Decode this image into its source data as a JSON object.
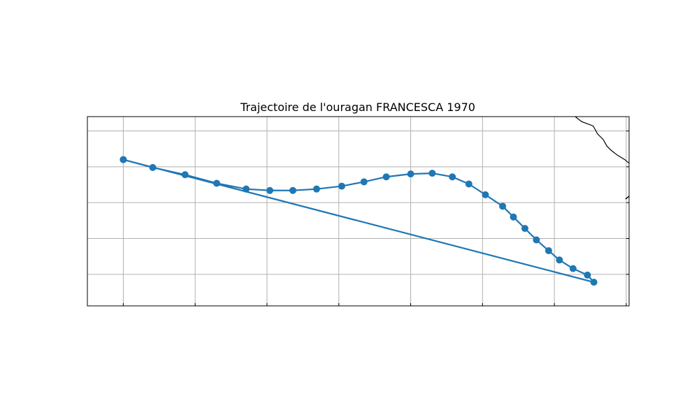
{
  "chart_data": {
    "type": "line",
    "title": "Trajectoire de l'ouragan FRANCESCA 1970",
    "xlabel": "",
    "ylabel": "",
    "grid": true,
    "projection": "map",
    "xlim": [
      -145,
      -107.3
    ],
    "ylim": [
      5.3,
      18.5
    ],
    "gridlines_x": [
      -142.5,
      -137.5,
      -132.5,
      -127.5,
      -122.5,
      -117.5,
      -112.5,
      -107.5
    ],
    "gridlines_y": [
      7.5,
      10,
      12.5,
      15,
      17.5
    ],
    "series": [
      {
        "color": "#1f77b4",
        "marker": "circle",
        "points": [
          [
            -142.5,
            15.5
          ],
          [
            -140.45,
            14.95
          ],
          [
            -138.2,
            14.45
          ],
          [
            -136.0,
            13.85
          ],
          [
            -133.95,
            13.45
          ],
          [
            -132.3,
            13.35
          ],
          [
            -130.7,
            13.35
          ],
          [
            -129.05,
            13.45
          ],
          [
            -127.3,
            13.65
          ],
          [
            -125.75,
            13.95
          ],
          [
            -124.2,
            14.3
          ],
          [
            -122.5,
            14.5
          ],
          [
            -121.0,
            14.55
          ],
          [
            -119.6,
            14.3
          ],
          [
            -118.45,
            13.8
          ],
          [
            -117.3,
            13.05
          ],
          [
            -116.1,
            12.25
          ],
          [
            -115.35,
            11.5
          ],
          [
            -114.55,
            10.7
          ],
          [
            -113.75,
            9.9
          ],
          [
            -112.9,
            9.15
          ],
          [
            -112.15,
            8.5
          ],
          [
            -111.2,
            7.9
          ],
          [
            -110.2,
            7.45
          ],
          [
            -109.75,
            6.95
          ],
          [
            -142.5,
            15.5
          ]
        ]
      }
    ],
    "coastline": {
      "color": "#000000",
      "points": [
        [
          -111.05,
          18.5
        ],
        [
          -110.6,
          18.15
        ],
        [
          -109.8,
          17.85
        ],
        [
          -109.5,
          17.3
        ],
        [
          -109.1,
          16.9
        ],
        [
          -108.85,
          16.45
        ],
        [
          -108.55,
          16.15
        ],
        [
          -108.1,
          15.8
        ],
        [
          -107.6,
          15.5
        ],
        [
          -107.3,
          15.25
        ]
      ]
    },
    "coastline_stub": [
      [
        -107.3,
        12.95
      ],
      [
        -107.55,
        12.75
      ]
    ]
  }
}
